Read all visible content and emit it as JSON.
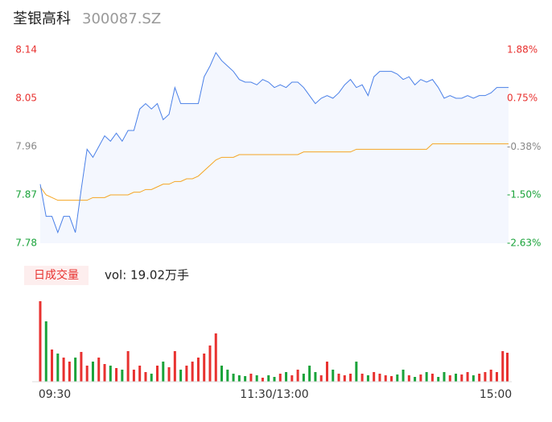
{
  "chart_data": [
    {
      "type": "line",
      "title": "荃银高科",
      "subtitle": "300087.SZ",
      "x": [
        0,
        3,
        6,
        9,
        12,
        15,
        18,
        21,
        24,
        27,
        30,
        33,
        36,
        39,
        42,
        45,
        48,
        51,
        54,
        57,
        60,
        63,
        66,
        69,
        72,
        75,
        78,
        81,
        84,
        87,
        90,
        93,
        96,
        99,
        102,
        105,
        108,
        111,
        114,
        117,
        120,
        123,
        126,
        129,
        132,
        135,
        138,
        141,
        144,
        147,
        150,
        153,
        156,
        159,
        162,
        165,
        168,
        171,
        174,
        177,
        180,
        183,
        186,
        189,
        192,
        195,
        198,
        201,
        204,
        207,
        210,
        213,
        216,
        219,
        222,
        225,
        228,
        231,
        234,
        237,
        240
      ],
      "series": [
        {
          "name": "price",
          "color": "#4a80e8",
          "values": [
            7.89,
            7.83,
            7.83,
            7.8,
            7.83,
            7.83,
            7.8,
            7.88,
            7.955,
            7.94,
            7.96,
            7.98,
            7.97,
            7.985,
            7.97,
            7.99,
            7.99,
            8.03,
            8.04,
            8.03,
            8.04,
            8.01,
            8.02,
            8.07,
            8.04,
            8.04,
            8.04,
            8.04,
            8.09,
            8.11,
            8.135,
            8.12,
            8.11,
            8.1,
            8.085,
            8.08,
            8.08,
            8.075,
            8.085,
            8.08,
            8.07,
            8.075,
            8.07,
            8.08,
            8.08,
            8.07,
            8.055,
            8.04,
            8.05,
            8.055,
            8.05,
            8.06,
            8.075,
            8.085,
            8.07,
            8.075,
            8.055,
            8.09,
            8.1,
            8.1,
            8.1,
            8.095,
            8.085,
            8.09,
            8.075,
            8.085,
            8.08,
            8.085,
            8.07,
            8.05,
            8.055,
            8.05,
            8.05,
            8.055,
            8.05,
            8.055,
            8.055,
            8.06,
            8.07,
            8.07,
            8.07
          ]
        },
        {
          "name": "average",
          "color": "#f5a623",
          "values": [
            7.885,
            7.87,
            7.865,
            7.86,
            7.86,
            7.86,
            7.86,
            7.86,
            7.86,
            7.865,
            7.865,
            7.865,
            7.87,
            7.87,
            7.87,
            7.87,
            7.875,
            7.875,
            7.88,
            7.88,
            7.885,
            7.89,
            7.89,
            7.895,
            7.895,
            7.9,
            7.9,
            7.905,
            7.915,
            7.925,
            7.935,
            7.94,
            7.94,
            7.94,
            7.945,
            7.945,
            7.945,
            7.945,
            7.945,
            7.945,
            7.945,
            7.945,
            7.945,
            7.945,
            7.945,
            7.95,
            7.95,
            7.95,
            7.95,
            7.95,
            7.95,
            7.95,
            7.95,
            7.95,
            7.955,
            7.955,
            7.955,
            7.955,
            7.955,
            7.955,
            7.955,
            7.955,
            7.955,
            7.955,
            7.955,
            7.955,
            7.955,
            7.965,
            7.965,
            7.965,
            7.965,
            7.965,
            7.965,
            7.965,
            7.965,
            7.965,
            7.965,
            7.965,
            7.965,
            7.965,
            7.965
          ]
        }
      ],
      "xlim": [
        0,
        240
      ],
      "ylim": [
        7.78,
        8.14
      ],
      "yticks": [
        7.78,
        7.87,
        7.96,
        8.05,
        8.14
      ],
      "y2lim": [
        -2.63,
        1.88
      ],
      "y2ticks": [
        {
          "value": -2.63,
          "label": "-2.63%"
        },
        {
          "value": -1.5,
          "label": "-1.50%"
        },
        {
          "value": -0.38,
          "label": "-0.38%"
        },
        {
          "value": 0.75,
          "label": "0.75%"
        },
        {
          "value": 1.88,
          "label": "1.88%"
        }
      ],
      "up_color": "#e8312f",
      "down_color": "#1aa33a",
      "flat_color": "#888888",
      "area_color": "#f4f7fe"
    },
    {
      "type": "bar",
      "label": "日成交量",
      "annotation": "vol: 19.02万手",
      "x": [
        0,
        3,
        6,
        9,
        12,
        15,
        18,
        21,
        24,
        27,
        30,
        33,
        36,
        39,
        42,
        45,
        48,
        51,
        54,
        57,
        60,
        63,
        66,
        69,
        72,
        75,
        78,
        81,
        84,
        87,
        90,
        93,
        96,
        99,
        102,
        105,
        108,
        111,
        114,
        117,
        120,
        123,
        126,
        129,
        132,
        135,
        138,
        141,
        144,
        147,
        150,
        153,
        156,
        159,
        162,
        165,
        168,
        171,
        174,
        177,
        180,
        183,
        186,
        189,
        192,
        195,
        198,
        201,
        204,
        207,
        210,
        213,
        216,
        219,
        222,
        225,
        228,
        231,
        234,
        237,
        240
      ],
      "values": [
        100,
        75,
        40,
        35,
        30,
        25,
        30,
        37,
        20,
        25,
        30,
        22,
        20,
        17,
        15,
        38,
        15,
        20,
        12,
        10,
        20,
        25,
        18,
        38,
        15,
        20,
        25,
        30,
        35,
        45,
        60,
        20,
        15,
        10,
        8,
        7,
        10,
        8,
        5,
        8,
        6,
        10,
        12,
        8,
        15,
        10,
        20,
        12,
        8,
        25,
        15,
        10,
        8,
        10,
        25,
        10,
        8,
        12,
        10,
        8,
        7,
        9,
        15,
        8,
        6,
        9,
        12,
        10,
        6,
        12,
        8,
        10,
        9,
        12,
        8,
        10,
        12,
        15,
        12,
        38,
        36
      ],
      "xlim": [
        0,
        240
      ],
      "ylim": [
        0,
        100
      ],
      "xticks": [
        {
          "value": 0,
          "label": "09:30"
        },
        {
          "value": 120,
          "label": "11:30/13:00"
        },
        {
          "value": 240,
          "label": "15:00"
        }
      ]
    }
  ]
}
